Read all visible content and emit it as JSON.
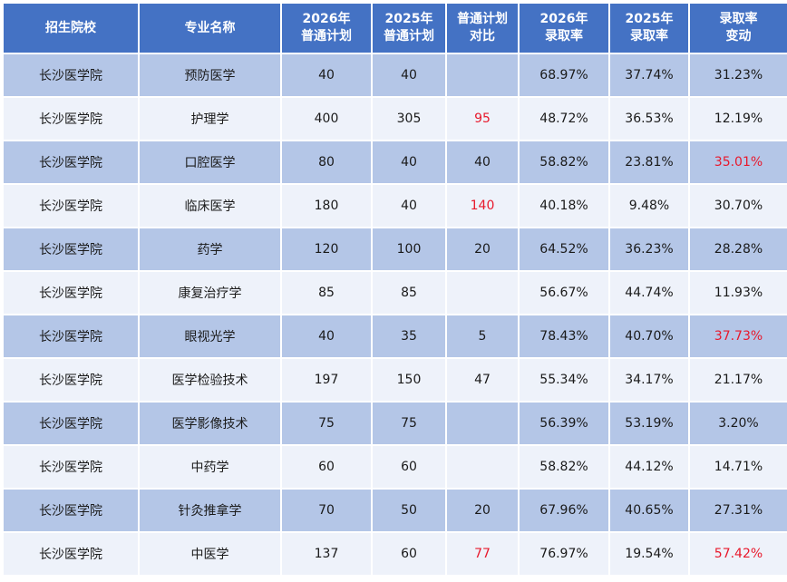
{
  "headers": [
    [
      "招生院校"
    ],
    [
      "专业名称"
    ],
    [
      "2026年",
      "普通计划"
    ],
    [
      "2025年",
      "普通计划"
    ],
    [
      "普通计划",
      "对比"
    ],
    [
      "2026年",
      "录取率"
    ],
    [
      "2025年",
      "录取率"
    ],
    [
      "录取率",
      "变动"
    ]
  ],
  "rows": [
    {
      "school": "长沙医学院",
      "major": "预防医学",
      "plan_2026": "40",
      "plan_2025": "40",
      "plan_diff": "",
      "rate_2026": "68.97%",
      "rate_2025": "37.74%",
      "rate_change": "31.23%",
      "diff_red": false,
      "change_red": false
    },
    {
      "school": "长沙医学院",
      "major": "护理学",
      "plan_2026": "400",
      "plan_2025": "305",
      "plan_diff": "95",
      "rate_2026": "48.72%",
      "rate_2025": "36.53%",
      "rate_change": "12.19%",
      "diff_red": true,
      "change_red": false
    },
    {
      "school": "长沙医学院",
      "major": "口腔医学",
      "plan_2026": "80",
      "plan_2025": "40",
      "plan_diff": "40",
      "rate_2026": "58.82%",
      "rate_2025": "23.81%",
      "rate_change": "35.01%",
      "diff_red": false,
      "change_red": true
    },
    {
      "school": "长沙医学院",
      "major": "临床医学",
      "plan_2026": "180",
      "plan_2025": "40",
      "plan_diff": "140",
      "rate_2026": "40.18%",
      "rate_2025": "9.48%",
      "rate_change": "30.70%",
      "diff_red": true,
      "change_red": false
    },
    {
      "school": "长沙医学院",
      "major": "药学",
      "plan_2026": "120",
      "plan_2025": "100",
      "plan_diff": "20",
      "rate_2026": "64.52%",
      "rate_2025": "36.23%",
      "rate_change": "28.28%",
      "diff_red": false,
      "change_red": false
    },
    {
      "school": "长沙医学院",
      "major": "康复治疗学",
      "plan_2026": "85",
      "plan_2025": "85",
      "plan_diff": "",
      "rate_2026": "56.67%",
      "rate_2025": "44.74%",
      "rate_change": "11.93%",
      "diff_red": false,
      "change_red": false
    },
    {
      "school": "长沙医学院",
      "major": "眼视光学",
      "plan_2026": "40",
      "plan_2025": "35",
      "plan_diff": "5",
      "rate_2026": "78.43%",
      "rate_2025": "40.70%",
      "rate_change": "37.73%",
      "diff_red": false,
      "change_red": true
    },
    {
      "school": "长沙医学院",
      "major": "医学检验技术",
      "plan_2026": "197",
      "plan_2025": "150",
      "plan_diff": "47",
      "rate_2026": "55.34%",
      "rate_2025": "34.17%",
      "rate_change": "21.17%",
      "diff_red": false,
      "change_red": false
    },
    {
      "school": "长沙医学院",
      "major": "医学影像技术",
      "plan_2026": "75",
      "plan_2025": "75",
      "plan_diff": "",
      "rate_2026": "56.39%",
      "rate_2025": "53.19%",
      "rate_change": "3.20%",
      "diff_red": false,
      "change_red": false
    },
    {
      "school": "长沙医学院",
      "major": "中药学",
      "plan_2026": "60",
      "plan_2025": "60",
      "plan_diff": "",
      "rate_2026": "58.82%",
      "rate_2025": "44.12%",
      "rate_change": "14.71%",
      "diff_red": false,
      "change_red": false
    },
    {
      "school": "长沙医学院",
      "major": "针灸推拿学",
      "plan_2026": "70",
      "plan_2025": "50",
      "plan_diff": "20",
      "rate_2026": "67.96%",
      "rate_2025": "40.65%",
      "rate_change": "27.31%",
      "diff_red": false,
      "change_red": false
    },
    {
      "school": "长沙医学院",
      "major": "中医学",
      "plan_2026": "137",
      "plan_2025": "60",
      "plan_diff": "77",
      "rate_2026": "76.97%",
      "rate_2025": "19.54%",
      "rate_change": "57.42%",
      "diff_red": true,
      "change_red": true
    }
  ],
  "colors": {
    "header_bg": "#4472c4",
    "row_dark": "#b4c6e7",
    "row_light": "#eef2fa",
    "highlight": "#e8192c"
  }
}
